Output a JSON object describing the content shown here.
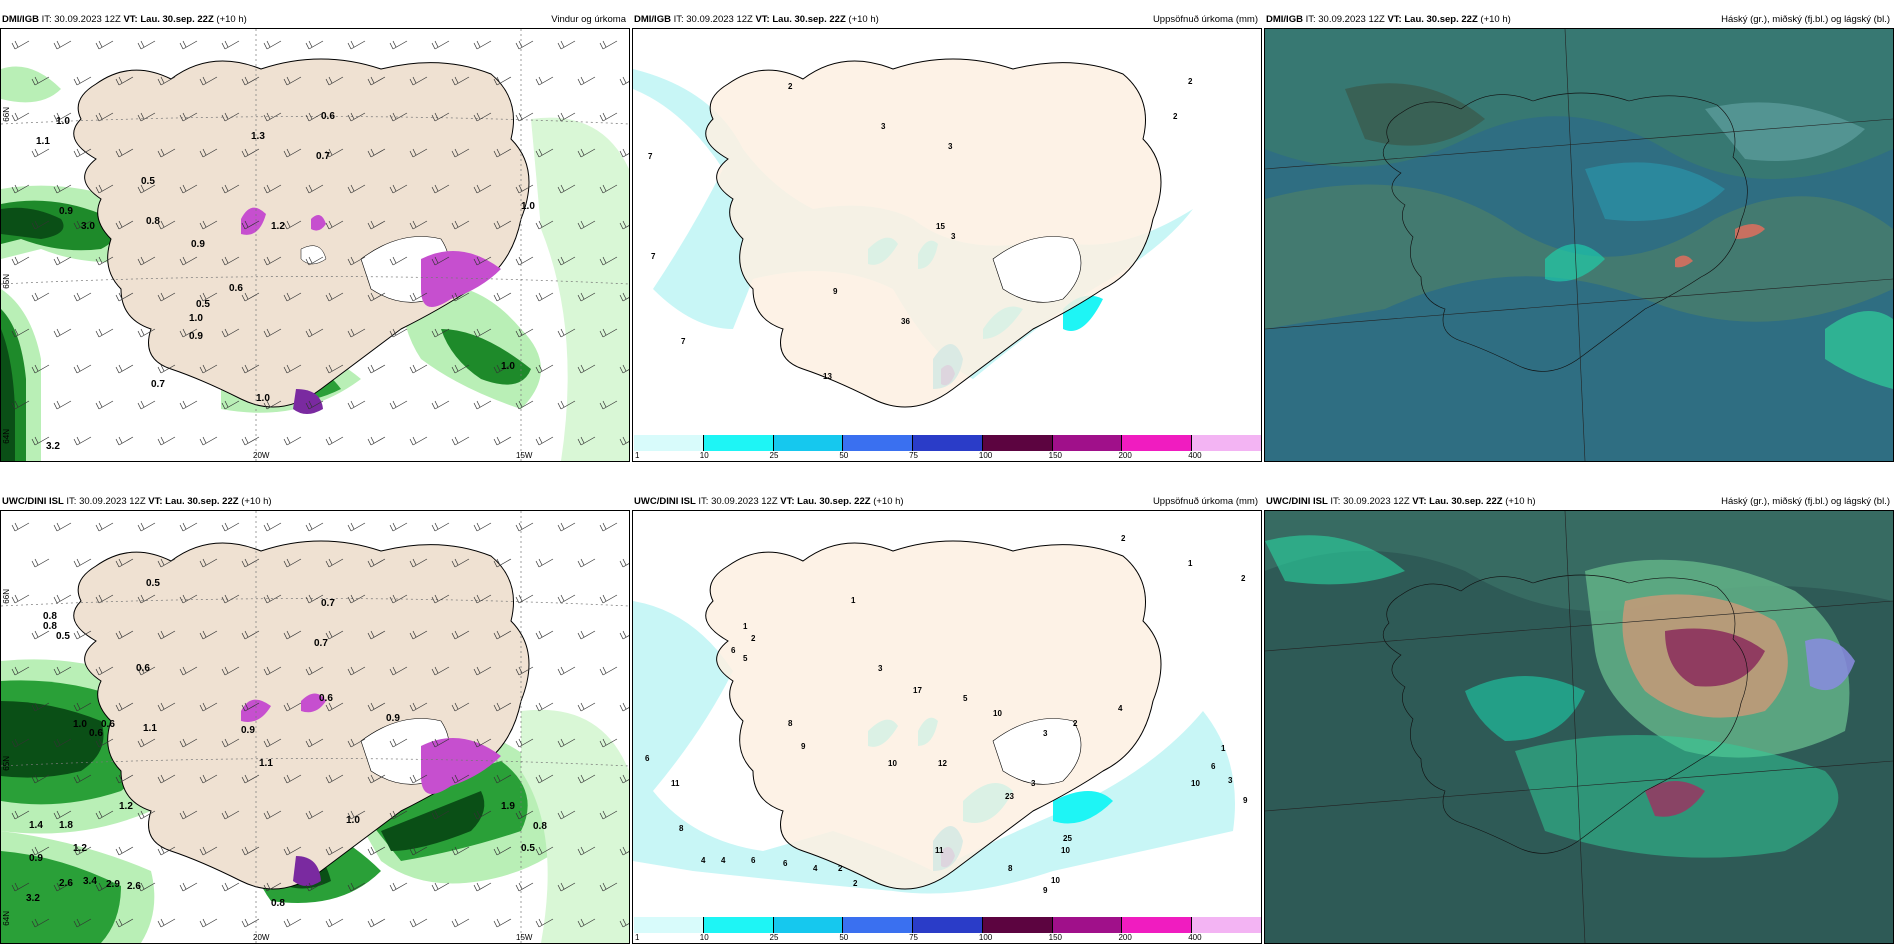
{
  "panels": [
    {
      "id": "p1",
      "model": "DMI/IGB",
      "it_label": "IT:",
      "it": "30.09.2023 12Z",
      "vt_label": "VT:",
      "vt": "Lau. 30.sep. 22Z",
      "lead": "(+10 h)",
      "title": "Vindur og úrkoma",
      "type": "wind"
    },
    {
      "id": "p2",
      "model": "DMI/IGB",
      "it_label": "IT:",
      "it": "30.09.2023 12Z",
      "vt_label": "VT:",
      "vt": "Lau. 30.sep. 22Z",
      "lead": "(+10 h)",
      "title": "Uppsöfnuð úrkoma (mm)",
      "type": "precip"
    },
    {
      "id": "p3",
      "model": "DMI/IGB",
      "it_label": "IT:",
      "it": "30.09.2023 12Z",
      "vt_label": "VT:",
      "vt": "Lau. 30.sep. 22Z",
      "lead": "(+10 h)",
      "title": "Háský (gr.), miðský (fj.bl.) og lágský (bl.)",
      "type": "cloud"
    },
    {
      "id": "p4",
      "model": "UWC/DINI ISL",
      "it_label": "IT:",
      "it": "30.09.2023 12Z",
      "vt_label": "VT:",
      "vt": "Lau. 30.sep. 22Z",
      "lead": "(+10 h)",
      "title": "",
      "type": "wind"
    },
    {
      "id": "p5",
      "model": "UWC/DINI ISL",
      "it_label": "IT:",
      "it": "30.09.2023 12Z",
      "vt_label": "VT:",
      "vt": "Lau. 30.sep. 22Z",
      "lead": "(+10 h)",
      "title": "Uppsöfnuð úrkoma (mm)",
      "type": "precip"
    },
    {
      "id": "p6",
      "model": "UWC/DINI ISL",
      "it_label": "IT:",
      "it": "30.09.2023 12Z",
      "vt_label": "VT:",
      "vt": "Lau. 30.sep. 22Z",
      "lead": "(+10 h)",
      "title": "Háský (gr.), miðský (fj.bl.) og lágský (bl.)",
      "type": "cloud"
    }
  ],
  "colorbar": {
    "labels": [
      "1",
      "10",
      "25",
      "50",
      "75",
      "100",
      "150",
      "200",
      "400"
    ],
    "colors": [
      "#d8fbfb",
      "#1ef5f5",
      "#16c8ee",
      "#3a70f0",
      "#2a3cc8",
      "#5c0440",
      "#a0108a",
      "#f01cc0",
      "#f3b4f3"
    ]
  },
  "axis_labels": {
    "lon1": "20W",
    "lon2": "15W",
    "lat1": "66N",
    "lat2": "65N",
    "lat3": "64N"
  },
  "wind_values_p1": [
    "1.0",
    "1.1",
    "0.6",
    "1.3",
    "0.7",
    "0.5",
    "0.9",
    "3.0",
    "0.8",
    "0.9",
    "0.6",
    "0.5",
    "1.0",
    "0.9",
    "0.7",
    "1.0",
    "1.2",
    "1.0",
    "3.2",
    "1.0"
  ],
  "wind_values_p4": [
    "0.5",
    "0.8",
    "0.8",
    "0.5",
    "0.7",
    "0.6",
    "0.6",
    "1.0",
    "0.6",
    "1.1",
    "0.6",
    "0.9",
    "1.1",
    "1.2",
    "1.8",
    "1.4",
    "1.2",
    "0.9",
    "2.6",
    "3.4",
    "2.9",
    "2.6",
    "3.2",
    "0.8",
    "1.0",
    "0.5",
    "0.8",
    "1.9",
    "0.7",
    "0.9"
  ],
  "precip_values_p2": [
    "2",
    "2",
    "7",
    "3",
    "3",
    "7",
    "9",
    "36",
    "15",
    "3",
    "13",
    "2",
    "7"
  ],
  "precip_values_p5": [
    "2",
    "1",
    "2",
    "1",
    "2",
    "6",
    "5",
    "1",
    "3",
    "17",
    "10",
    "5",
    "6",
    "11",
    "8",
    "8",
    "9",
    "10",
    "12",
    "3",
    "3",
    "2",
    "4",
    "6",
    "3",
    "9",
    "10",
    "11",
    "23",
    "25",
    "4",
    "4",
    "6",
    "6",
    "4",
    "2",
    "2",
    "8",
    "9",
    "10",
    "10",
    "1"
  ]
}
